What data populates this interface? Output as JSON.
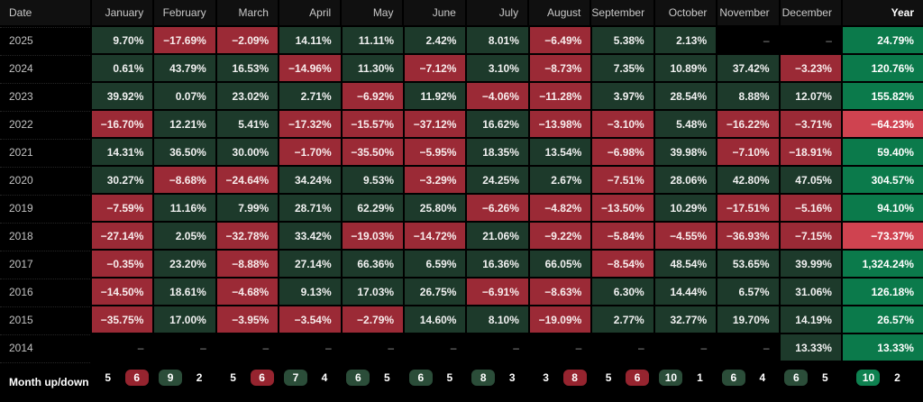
{
  "chart_data": {
    "type": "heatmap",
    "columns": [
      "Date",
      "January",
      "February",
      "March",
      "April",
      "May",
      "June",
      "July",
      "August",
      "September",
      "October",
      "November",
      "December",
      "Year"
    ],
    "empty_placeholder": "–",
    "rows": [
      {
        "label": "2025",
        "values": [
          9.7,
          -17.69,
          -2.09,
          14.11,
          11.11,
          2.42,
          8.01,
          -6.49,
          5.38,
          2.13,
          null,
          null
        ],
        "year_total": 24.79
      },
      {
        "label": "2024",
        "values": [
          0.61,
          43.79,
          16.53,
          -14.96,
          11.3,
          -7.12,
          3.1,
          -8.73,
          7.35,
          10.89,
          37.42,
          -3.23
        ],
        "year_total": 120.76
      },
      {
        "label": "2023",
        "values": [
          39.92,
          0.07,
          23.02,
          2.71,
          -6.92,
          11.92,
          -4.06,
          -11.28,
          3.97,
          28.54,
          8.88,
          12.07
        ],
        "year_total": 155.82
      },
      {
        "label": "2022",
        "values": [
          -16.7,
          12.21,
          5.41,
          -17.32,
          -15.57,
          -37.12,
          16.62,
          -13.98,
          -3.1,
          5.48,
          -16.22,
          -3.71
        ],
        "year_total": -64.23
      },
      {
        "label": "2021",
        "values": [
          14.31,
          36.5,
          30.0,
          -1.7,
          -35.5,
          -5.95,
          18.35,
          13.54,
          -6.98,
          39.98,
          -7.1,
          -18.91
        ],
        "year_total": 59.4
      },
      {
        "label": "2020",
        "values": [
          30.27,
          -8.68,
          -24.64,
          34.24,
          9.53,
          -3.29,
          24.25,
          2.67,
          -7.51,
          28.06,
          42.8,
          47.05
        ],
        "year_total": 304.57
      },
      {
        "label": "2019",
        "values": [
          -7.59,
          11.16,
          7.99,
          28.71,
          62.29,
          25.8,
          -6.26,
          -4.82,
          -13.5,
          10.29,
          -17.51,
          -5.16
        ],
        "year_total": 94.1
      },
      {
        "label": "2018",
        "values": [
          -27.14,
          2.05,
          -32.78,
          33.42,
          -19.03,
          -14.72,
          21.06,
          -9.22,
          -5.84,
          -4.55,
          -36.93,
          -7.15
        ],
        "year_total": -73.37
      },
      {
        "label": "2017",
        "values": [
          -0.35,
          23.2,
          -8.88,
          27.14,
          66.36,
          6.59,
          16.36,
          66.05,
          -8.54,
          48.54,
          53.65,
          39.99
        ],
        "year_total": 1324.24
      },
      {
        "label": "2016",
        "values": [
          -14.5,
          18.61,
          -4.68,
          9.13,
          17.03,
          26.75,
          -6.91,
          -8.63,
          6.3,
          14.44,
          6.57,
          31.06
        ],
        "year_total": 126.18
      },
      {
        "label": "2015",
        "values": [
          -35.75,
          17.0,
          -3.95,
          -3.54,
          -2.79,
          14.6,
          8.1,
          -19.09,
          2.77,
          32.77,
          19.7,
          14.19
        ],
        "year_total": 26.57
      },
      {
        "label": "2014",
        "values": [
          null,
          null,
          null,
          null,
          null,
          null,
          null,
          null,
          null,
          null,
          null,
          13.33
        ],
        "year_total": 13.33
      }
    ],
    "updown": {
      "label": "Month up/down",
      "pairs": [
        [
          5,
          6
        ],
        [
          9,
          2
        ],
        [
          5,
          6
        ],
        [
          7,
          4
        ],
        [
          6,
          5
        ],
        [
          6,
          5
        ],
        [
          8,
          3
        ],
        [
          3,
          8
        ],
        [
          5,
          6
        ],
        [
          10,
          1
        ],
        [
          6,
          4
        ],
        [
          6,
          5
        ]
      ],
      "year_pair": [
        10,
        2
      ]
    }
  },
  "colors": {
    "background": "#000000",
    "header_bg": "#101010",
    "header_text": "#c9c9c9",
    "date_text": "#c2c2c2",
    "cell_text": "#f1f1f1",
    "pos_cell": "#1d3a2b",
    "neg_cell": "#9b2a36",
    "pos_year": "#0b7a4b",
    "neg_year": "#cf4350",
    "badge_green": "#2b4d39",
    "badge_red": "#96242f",
    "badge_year_green": "#0e8150",
    "bar_green": "#1ea14f",
    "bar_red": "#ee3d4d"
  }
}
